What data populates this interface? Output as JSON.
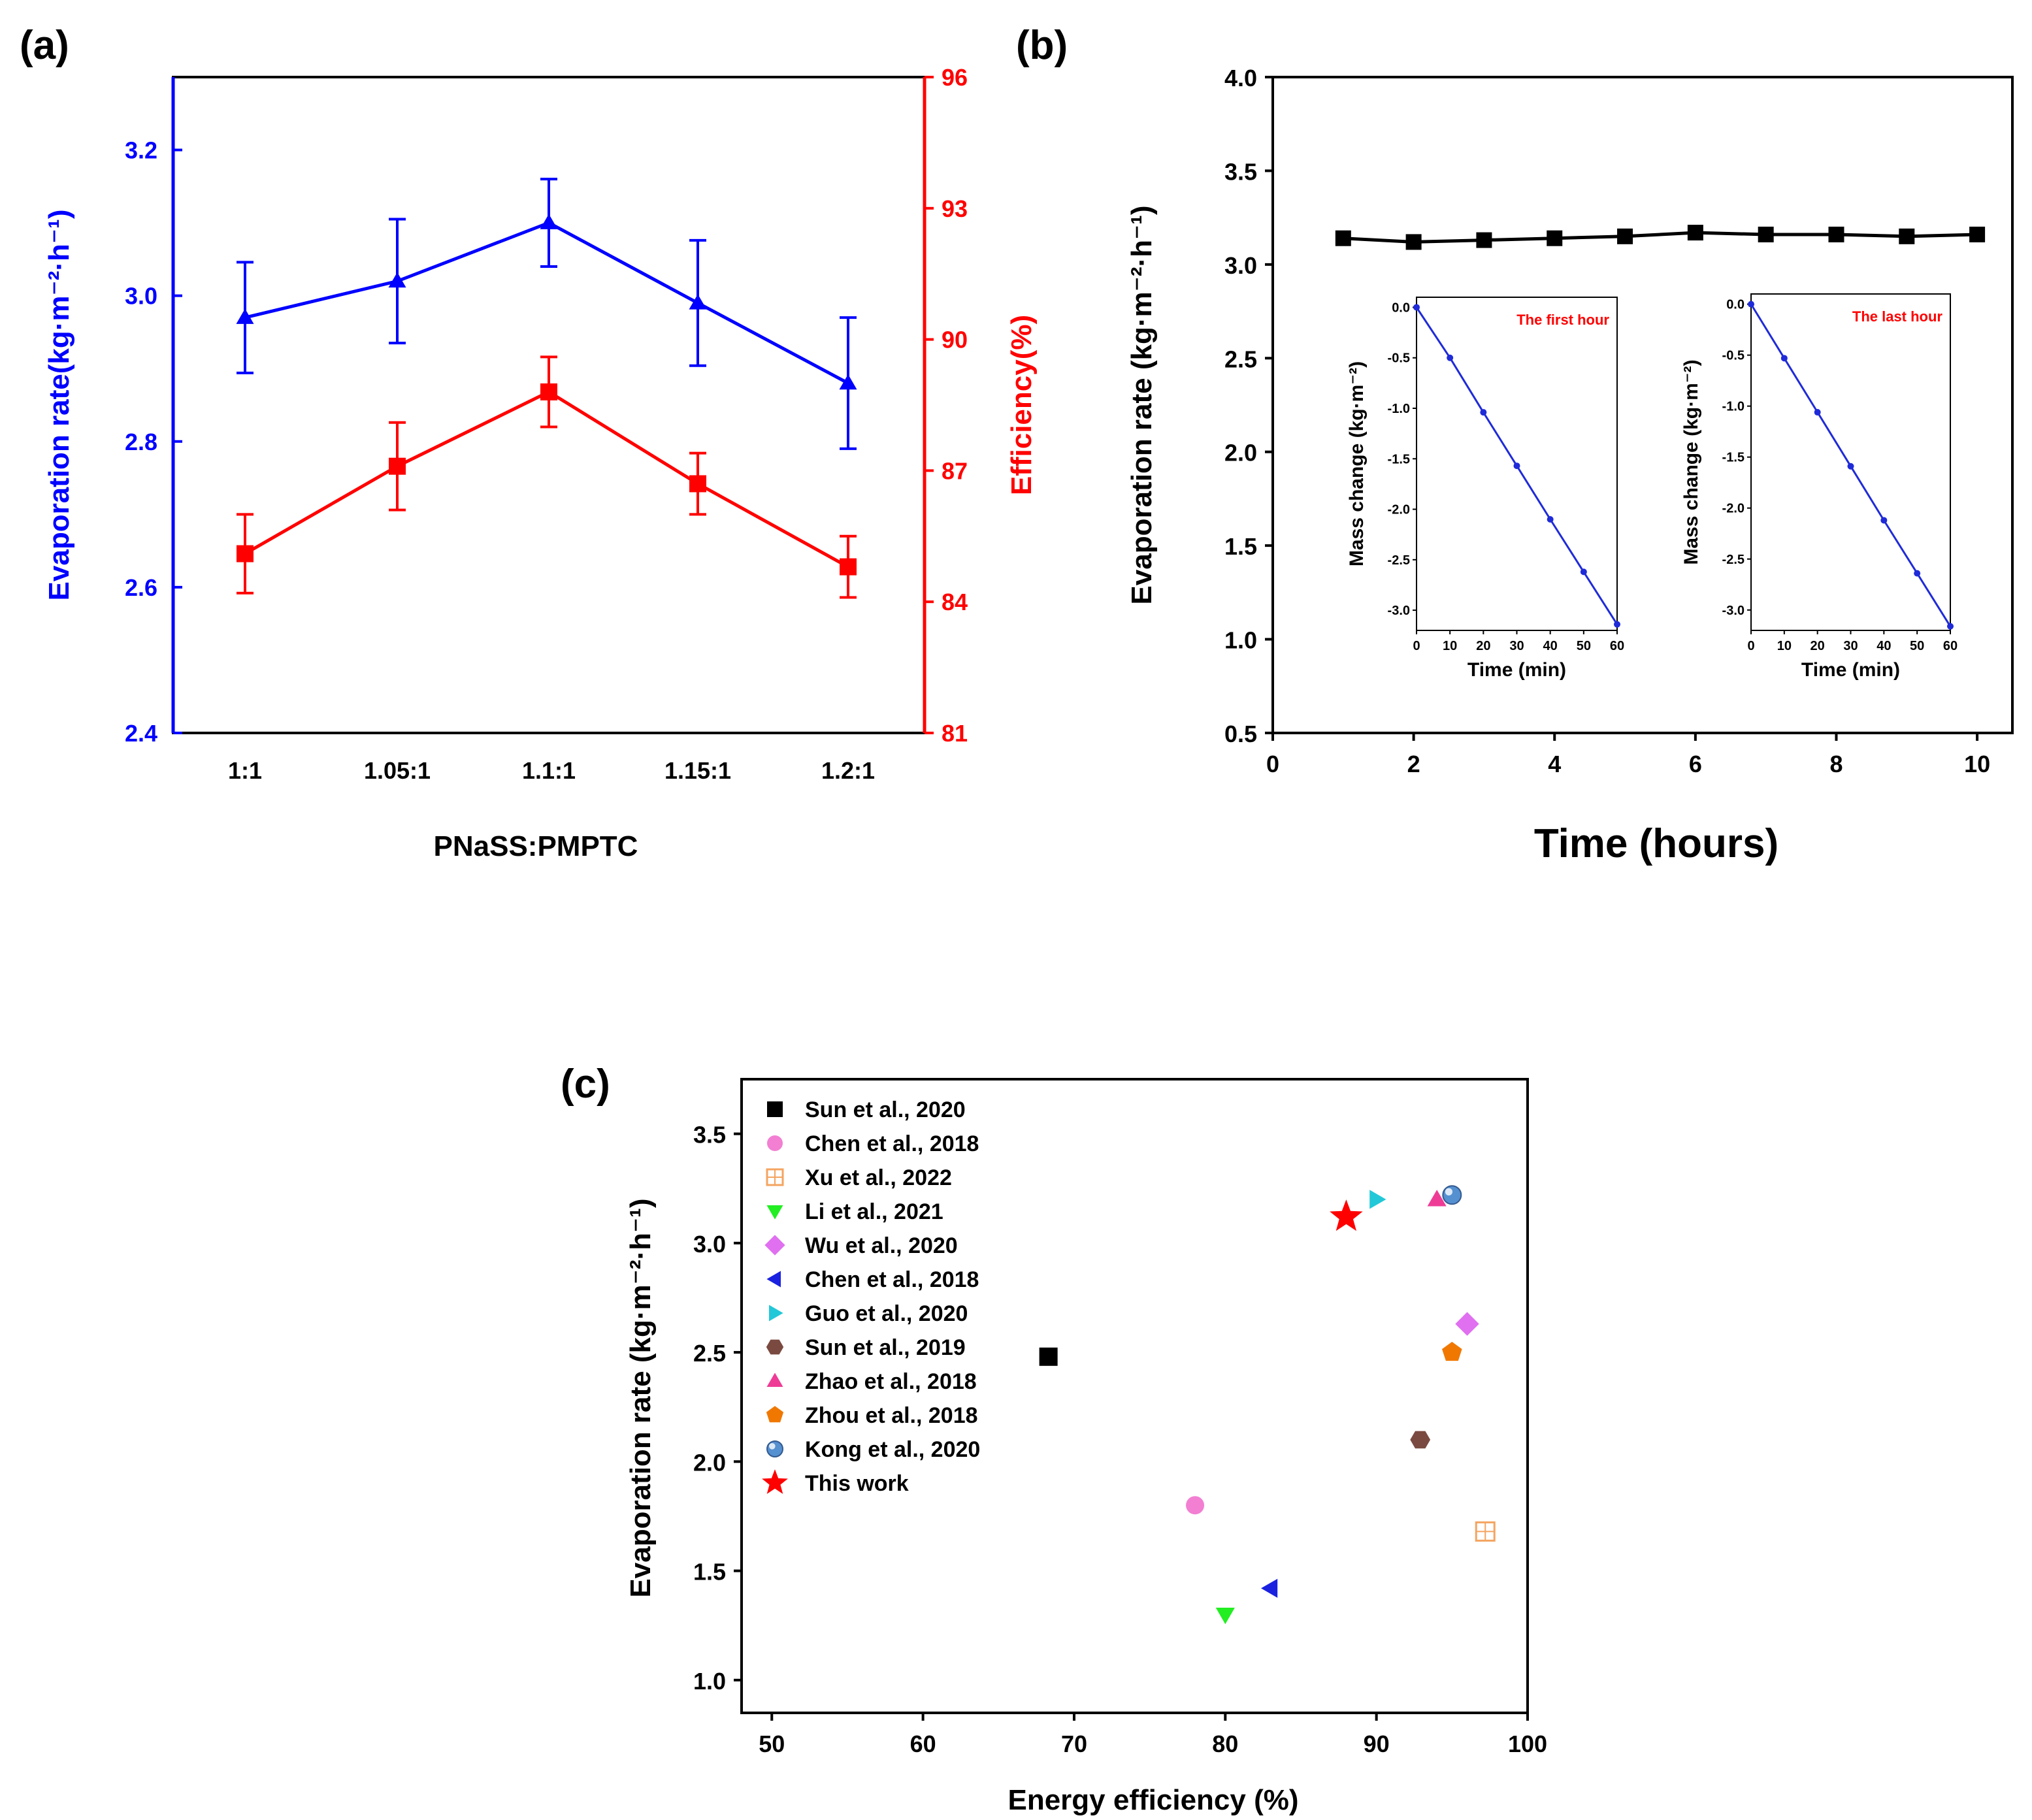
{
  "panels": {
    "a": "(a)",
    "b": "(b)",
    "c": "(c)"
  },
  "colors": {
    "blue": "#0000ff",
    "red": "#ff0000",
    "black": "#000000"
  },
  "chart_data": [
    {
      "id": "a",
      "type": "line",
      "xlabel": "PNaSS:PMPTC",
      "ylabel_left": "Evaporation rate(kg·m⁻²·h⁻¹)",
      "ylabel_right": "Efficiency(%)",
      "categories": [
        "1:1",
        "1.05:1",
        "1.1:1",
        "1.15:1",
        "1.2:1"
      ],
      "ylim_left": [
        2.4,
        3.3
      ],
      "yticks_left": [
        "2.4",
        "2.6",
        "2.8",
        "3.0",
        "3.2"
      ],
      "ylim_right": [
        81,
        96
      ],
      "yticks_right": [
        "81",
        "84",
        "87",
        "90",
        "93",
        "96"
      ],
      "series": [
        {
          "name": "Evaporation rate",
          "axis": "left",
          "marker": "triangle",
          "color": "#0000ff",
          "values": [
            2.97,
            3.02,
            3.1,
            2.99,
            2.88
          ],
          "errors": [
            0.076,
            0.085,
            0.06,
            0.086,
            0.09
          ]
        },
        {
          "name": "Efficiency",
          "axis": "right",
          "marker": "square",
          "color": "#ff0000",
          "values": [
            85.1,
            87.1,
            88.8,
            86.7,
            84.8
          ],
          "errors": [
            0.9,
            1.0,
            0.8,
            0.7,
            0.7
          ]
        }
      ]
    },
    {
      "id": "b",
      "type": "line",
      "xlabel": "Time (hours)",
      "ylabel": "Evaporation rate (kg·m⁻²·h⁻¹)",
      "xlim": [
        0,
        10.5
      ],
      "xticks": [
        "0",
        "2",
        "4",
        "6",
        "8",
        "10"
      ],
      "ylim": [
        0.5,
        4.0
      ],
      "yticks": [
        "0.5",
        "1.0",
        "1.5",
        "2.0",
        "2.5",
        "3.0",
        "3.5",
        "4.0"
      ],
      "x": [
        1,
        2,
        3,
        4,
        5,
        6,
        7,
        8,
        9,
        10
      ],
      "values": [
        3.14,
        3.12,
        3.13,
        3.14,
        3.15,
        3.17,
        3.16,
        3.16,
        3.15,
        3.16
      ],
      "insets": [
        {
          "label": "The first hour",
          "xlabel": "Time (min)",
          "ylabel": "Mass change (kg·m⁻²)",
          "xlim": [
            0,
            60
          ],
          "xticks": [
            "0",
            "10",
            "20",
            "30",
            "40",
            "50",
            "60"
          ],
          "ylim": [
            -3.2,
            0.1
          ],
          "yticks": [
            "0.0",
            "-0.5",
            "-1.0",
            "-1.5",
            "-2.0",
            "-2.5",
            "-3.0"
          ],
          "x": [
            0,
            10,
            20,
            30,
            40,
            50,
            60
          ],
          "values": [
            0.0,
            -0.5,
            -1.04,
            -1.57,
            -2.1,
            -2.62,
            -3.14
          ]
        },
        {
          "label": "The last hour",
          "xlabel": "Time (min)",
          "ylabel": "Mass change (kg·m⁻²)",
          "xlim": [
            0,
            60
          ],
          "xticks": [
            "0",
            "10",
            "20",
            "30",
            "40",
            "50",
            "60"
          ],
          "ylim": [
            -3.2,
            0.1
          ],
          "yticks": [
            "0.0",
            "-0.5",
            "-1.0",
            "-1.5",
            "-2.0",
            "-2.5",
            "-3.0"
          ],
          "x": [
            0,
            10,
            20,
            30,
            40,
            50,
            60
          ],
          "values": [
            0.0,
            -0.53,
            -1.06,
            -1.59,
            -2.12,
            -2.64,
            -3.16
          ]
        }
      ]
    },
    {
      "id": "c",
      "type": "scatter",
      "xlabel": "Energy efficiency (%)",
      "ylabel": "Evaporation rate (kg·m⁻²·h⁻¹)",
      "xlim": [
        48,
        100
      ],
      "xticks": [
        "50",
        "60",
        "70",
        "80",
        "90",
        "100"
      ],
      "ylim": [
        0.85,
        3.75
      ],
      "yticks": [
        "1.0",
        "1.5",
        "2.0",
        "2.5",
        "3.0",
        "3.5"
      ],
      "legend_position": "top-left",
      "points": [
        {
          "label": "Sun et al., 2020",
          "marker": "square",
          "color": "#000000",
          "x": 68.3,
          "y": 2.48
        },
        {
          "label": "Chen et al., 2018",
          "marker": "circle",
          "color": "#f27fd2",
          "x": 78.0,
          "y": 1.8
        },
        {
          "label": "Xu et al., 2022",
          "marker": "boxgrid",
          "color": "#f4a460",
          "x": 97.2,
          "y": 1.68
        },
        {
          "label": "Li et al., 2021",
          "marker": "tri-down",
          "color": "#22ee22",
          "x": 80.0,
          "y": 1.3
        },
        {
          "label": "Wu et al., 2020",
          "marker": "diamond",
          "color": "#e070f0",
          "x": 96.0,
          "y": 2.63
        },
        {
          "label": "Chen et al., 2018",
          "marker": "tri-left",
          "color": "#1a22e0",
          "x": 83.0,
          "y": 1.42
        },
        {
          "label": "Guo et al., 2020",
          "marker": "tri-right",
          "color": "#22c8d8",
          "x": 90.0,
          "y": 3.2
        },
        {
          "label": "Sun et al., 2019",
          "marker": "hexagon",
          "color": "#7a4a40",
          "x": 92.9,
          "y": 2.1
        },
        {
          "label": "Zhao et al., 2018",
          "marker": "tri-up",
          "color": "#ee3c96",
          "x": 94.0,
          "y": 3.2
        },
        {
          "label": "Zhou et al., 2018",
          "marker": "pentagon",
          "color": "#f07800",
          "x": 95.0,
          "y": 2.5
        },
        {
          "label": "Kong et al., 2020",
          "marker": "sphere",
          "color": "#5590d0",
          "x": 95.0,
          "y": 3.22
        },
        {
          "label": "This work",
          "marker": "star",
          "color": "#ff0000",
          "x": 88.0,
          "y": 3.12
        }
      ]
    }
  ]
}
